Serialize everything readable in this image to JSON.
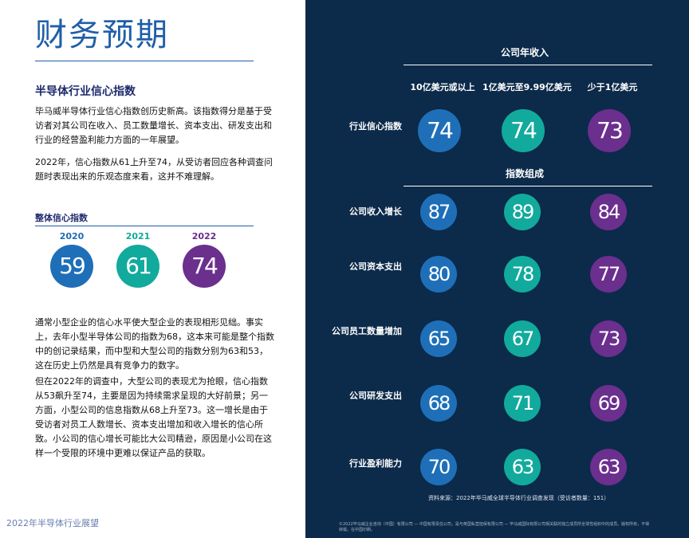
{
  "left": {
    "title": "财务预期",
    "section_heading": "半导体行业信心指数",
    "paragraph1": "毕马威半导体行业信心指数创历史新高。该指数得分是基于受访者对其公司在收入、员工数量增长、资本支出、研发支出和行业的经营盈利能力方面的一年展望。",
    "paragraph2": "2022年，信心指数从61上升至74，从受访者回应各种调查问题时表现出来的乐观态度来看，这并不难理解。",
    "overall": {
      "heading": "整体信心指数",
      "years": [
        "2020",
        "2021",
        "2022"
      ],
      "values": [
        "59",
        "61",
        "74"
      ]
    },
    "paragraph3": "通常小型企业的信心水平使大型企业的表现相形见绌。事实上，去年小型半导体公司的指数为68，这本来可能是整个指数中的创记录结果，而中型和大型公司的指数分别为63和53，这在历史上仍然是具有竞争力的数字。",
    "paragraph4": "但在2022年的调查中，大型公司的表现尤为抢眼，信心指数从53飙升至74，主要是因为持续需求呈现的大好前景；另一方面，小型公司的信息指数从68上升至73。这一增长是由于受访者对员工人数增长、资本支出增加和收入增长的信心所致。小公司的信心增长可能比大公司精逊，原因是小公司在这样一个受限的环境中更难以保证产品的获取。",
    "footer": "2022年半导体行业展望"
  },
  "right": {
    "revenue_heading": "公司年收入",
    "columns": [
      "10亿美元或以上",
      "1亿美元至9.99亿美元",
      "少于1亿美元"
    ],
    "components_heading": "指数组成",
    "rows": {
      "confidence": {
        "label": "行业信心指数",
        "values": [
          "74",
          "74",
          "73"
        ]
      },
      "revenue": {
        "label": "公司收入增长",
        "values": [
          "87",
          "89",
          "84"
        ]
      },
      "capex": {
        "label": "公司资本支出",
        "values": [
          "80",
          "78",
          "77"
        ]
      },
      "employees": {
        "label": "公司员工数量增加",
        "values": [
          "65",
          "67",
          "73"
        ]
      },
      "rnd": {
        "label": "公司研发支出",
        "values": [
          "68",
          "71",
          "69"
        ]
      },
      "profit": {
        "label": "行业盈利能力",
        "values": [
          "70",
          "63",
          "63"
        ]
      }
    },
    "source": "资料来源：2022年毕马威全球半导体行业调查发现（受访者数量：151）",
    "copyright": "©2022毕马威企业咨询（中国）有限公司 — 中国有限责任公司，是与英国私营担保有限公司 — 毕马威国际有限公司相关联的独立成员所全球性组织中的成员。版权所有，不得转载。在中国印刷。"
  },
  "colors": {
    "blue": "#1e6fb8",
    "teal": "#12aa9d",
    "purple": "#6b2f8e",
    "navy": "#0c2a4a",
    "title_blue": "#1f5fa8"
  }
}
